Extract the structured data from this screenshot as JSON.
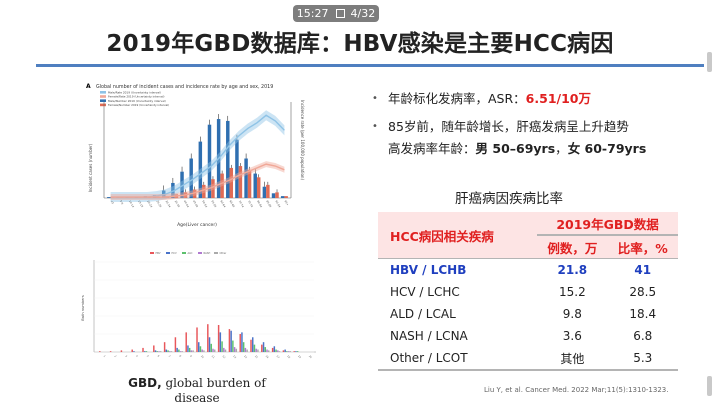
{
  "status": {
    "time": "15:27",
    "page": "4/32",
    "page_icon": "square-outline-icon"
  },
  "title": "2019年GBD数据库：HBV感染是主要HCC病因",
  "caption": {
    "bold": "GBD,",
    "text_line1": " global burden of",
    "text_line2": "disease"
  },
  "bullets": [
    {
      "prefix": "年龄标化发病率，ASR：",
      "value": "6.51/10万"
    },
    {
      "line1": "85岁前，随年龄增长，肝癌发病呈上升趋势",
      "line2_prefix": "高发病率年龄：",
      "male": "男 50–69yrs",
      "sep": "，",
      "female": "女 60-79yrs"
    }
  ],
  "table": {
    "title": "肝癌病因疾病比率",
    "header_col1": "HCC病因相关疾病",
    "header_group": "2019年GBD数据",
    "header_col2": "例数，万",
    "header_col3": "比率，%",
    "rows": [
      {
        "cause": "HBV   /  LCHB",
        "count": "21.8",
        "rate": "41"
      },
      {
        "cause": "HCV   /  LCHC",
        "count": "15.2",
        "rate": "28.5"
      },
      {
        "cause": "ALD   /  LCAL",
        "count": "9.8",
        "rate": "18.4"
      },
      {
        "cause": "NASH / LCNA",
        "count": "3.6",
        "rate": "6.8"
      },
      {
        "cause": "Other / LCOT",
        "count": "其他",
        "rate": "5.3"
      }
    ]
  },
  "reference": "Liu Y, et al. Cancer Med. 2022 Mar;11(5):1310-1323.",
  "figure_a": {
    "panel_label": "A",
    "title": "Global number of incident cases and incidence rate by age and sex, 2019",
    "legend": [
      "Male/Rate 2019 (Uncertainty interval)",
      "Female/Rate 2019 (Uncertainty interval)",
      "Male/Number 2019 (Uncertainty interval)",
      "Female/Number 2019 (Uncertainty interval)"
    ],
    "ylabel": "Incident cases (number)",
    "ylabel_right": "Incidence rate (per 100,000 population)",
    "xlabel": "Age(Liver cancer)",
    "colors": {
      "male_bar": "#2f6fb0",
      "female_bar": "#e06b55",
      "male_rate": "#8fc3e6",
      "female_rate": "#f0a898"
    }
  },
  "figure_b": {
    "ylabel": "Bath numbers",
    "colors": {
      "hbv": "#e8565a",
      "hcv": "#4a73c9",
      "ald": "#5cc06d",
      "nash": "#b07ad0",
      "other": "#aaaaaa"
    }
  },
  "chart_data": [
    {
      "type": "bar",
      "note": "Global incident cases of liver cancer by age group and sex, 2019, with incidence-rate lines",
      "categories": [
        "<5",
        "5-9",
        "10-14",
        "15-19",
        "20-24",
        "25-29",
        "30-34",
        "35-39",
        "40-44",
        "45-49",
        "50-54",
        "55-59",
        "60-64",
        "65-69",
        "70-74",
        "75-79",
        "80-84",
        "85-89",
        "90-94",
        "95+"
      ],
      "series": [
        {
          "name": "Male/Number 2019",
          "values": [
            1,
            1,
            1,
            1,
            2,
            3,
            8,
            16,
            28,
            42,
            60,
            78,
            84,
            82,
            62,
            42,
            26,
            12,
            5,
            2
          ]
        },
        {
          "name": "Female/Number 2019",
          "values": [
            1,
            1,
            1,
            1,
            1,
            1,
            2,
            4,
            6,
            9,
            14,
            20,
            26,
            32,
            34,
            30,
            22,
            14,
            6,
            2
          ]
        },
        {
          "name": "Male/Rate 2019",
          "values": [
            1,
            1,
            1,
            1,
            1,
            2,
            4,
            8,
            14,
            20,
            27,
            34,
            44,
            56,
            66,
            74,
            80,
            88,
            82,
            72
          ]
        },
        {
          "name": "Female/Rate 2019",
          "values": [
            1,
            1,
            1,
            1,
            1,
            1,
            1,
            2,
            3,
            5,
            8,
            11,
            15,
            19,
            24,
            28,
            32,
            36,
            34,
            30
          ]
        }
      ],
      "title": "Global number of incident cases and incidence rate by age and sex, 2019",
      "xlabel": "Age(Liver cancer)",
      "ylabel": "Incident cases (number)",
      "ylabel_right": "Incidence rate (per 100,000 population)"
    },
    {
      "type": "bar",
      "stacked": true,
      "categories": [
        "1",
        "2",
        "3",
        "4",
        "5",
        "6",
        "7",
        "8",
        "9",
        "10",
        "11",
        "12",
        "13",
        "14",
        "15",
        "16",
        "17",
        "18",
        "19",
        "20"
      ],
      "series": [
        {
          "name": "HBV",
          "values": [
            1,
            1,
            2,
            3,
            5,
            8,
            12,
            18,
            24,
            30,
            34,
            33,
            28,
            22,
            15,
            9,
            5,
            2,
            1,
            0
          ]
        },
        {
          "name": "HCV",
          "values": [
            0,
            0,
            0,
            1,
            1,
            2,
            3,
            5,
            8,
            12,
            18,
            24,
            26,
            24,
            18,
            12,
            7,
            3,
            1,
            0
          ]
        },
        {
          "name": "ALD",
          "values": [
            0,
            0,
            0,
            0,
            1,
            1,
            2,
            3,
            5,
            7,
            10,
            13,
            14,
            12,
            9,
            6,
            3,
            1,
            1,
            0
          ]
        },
        {
          "name": "NASH",
          "values": [
            0,
            0,
            0,
            0,
            0,
            1,
            1,
            1,
            2,
            3,
            4,
            5,
            6,
            5,
            4,
            3,
            2,
            1,
            0,
            0
          ]
        },
        {
          "name": "Other",
          "values": [
            0,
            0,
            0,
            0,
            0,
            1,
            1,
            1,
            2,
            2,
            3,
            3,
            4,
            3,
            3,
            2,
            1,
            1,
            0,
            0
          ]
        }
      ]
    }
  ]
}
